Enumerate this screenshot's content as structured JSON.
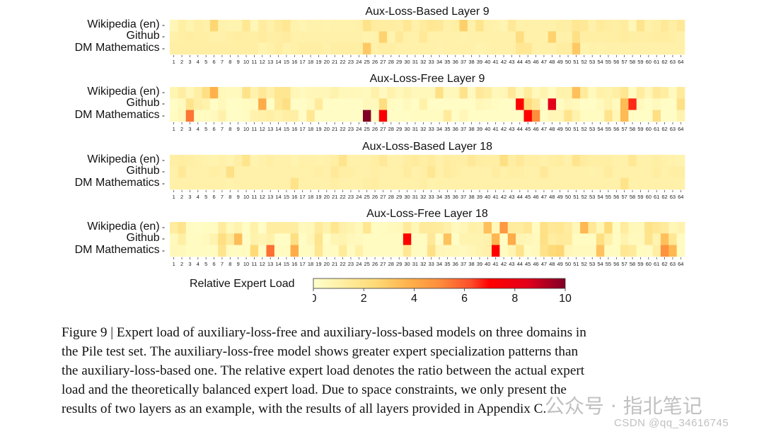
{
  "chart_data": [
    {
      "type": "heatmap",
      "title": "Aux-Loss-Based Layer 9",
      "rows": [
        "Wikipedia (en)",
        "Github",
        "DM Mathematics"
      ],
      "x": [
        1,
        2,
        3,
        4,
        5,
        6,
        7,
        8,
        9,
        10,
        11,
        12,
        13,
        14,
        15,
        16,
        17,
        18,
        19,
        20,
        21,
        22,
        23,
        24,
        25,
        26,
        27,
        28,
        29,
        30,
        31,
        32,
        33,
        34,
        35,
        36,
        37,
        38,
        39,
        40,
        41,
        42,
        43,
        44,
        45,
        46,
        47,
        48,
        49,
        50,
        51,
        52,
        53,
        54,
        55,
        56,
        57,
        58,
        59,
        60,
        61,
        62,
        63,
        64
      ],
      "values": [
        [
          0.6,
          1.1,
          0.8,
          1.1,
          1.0,
          2.6,
          0.9,
          0.8,
          0.8,
          1.6,
          0.6,
          1.3,
          1.0,
          1.4,
          1.6,
          0.9,
          0.7,
          0.9,
          0.9,
          0.8,
          0.9,
          0.9,
          0.9,
          1.0,
          1.9,
          1.3,
          1.2,
          1.2,
          1.1,
          1.6,
          1.0,
          1.3,
          1.6,
          1.5,
          1.0,
          1.1,
          2.8,
          1.0,
          1.8,
          1.0,
          0.9,
          0.7,
          1.5,
          1.0,
          1.0,
          1.0,
          1.0,
          1.0,
          1.1,
          1.1,
          1.6,
          1.5,
          1.0,
          1.4,
          1.2,
          1.1,
          1.3,
          0.6,
          1.8,
          1.0,
          1.1,
          1.5,
          1.1,
          1.5
        ],
        [
          1.0,
          1.1,
          1.2,
          1.1,
          1.1,
          1.0,
          1.0,
          1.1,
          1.2,
          1.1,
          1.1,
          1.3,
          1.1,
          1.1,
          1.3,
          1.0,
          1.0,
          1.0,
          1.0,
          1.0,
          1.0,
          1.0,
          1.0,
          1.0,
          0.8,
          0.9,
          2.7,
          0.8,
          1.5,
          1.0,
          1.0,
          1.5,
          1.0,
          1.0,
          1.0,
          1.0,
          0.9,
          1.0,
          1.0,
          1.0,
          1.0,
          1.0,
          1.0,
          2.2,
          1.0,
          1.0,
          1.0,
          2.7,
          1.0,
          1.0,
          2.0,
          1.1,
          1.1,
          1.1,
          1.1,
          1.1,
          1.3,
          1.1,
          1.1,
          1.1,
          1.2,
          1.2,
          1.1,
          1.0
        ],
        [
          1.1,
          1.1,
          1.1,
          1.1,
          1.1,
          1.1,
          1.1,
          1.1,
          1.1,
          1.1,
          1.1,
          0.8,
          1.0,
          1.2,
          0.9,
          1.0,
          1.1,
          1.1,
          1.1,
          1.0,
          1.1,
          1.1,
          1.1,
          1.1,
          3.0,
          1.0,
          1.1,
          1.1,
          1.0,
          1.0,
          1.0,
          1.0,
          1.0,
          0.9,
          1.0,
          1.0,
          1.0,
          1.0,
          0.8,
          0.9,
          1.0,
          1.0,
          1.0,
          1.6,
          1.6,
          1.0,
          1.0,
          1.0,
          1.2,
          1.2,
          3.0,
          0.8,
          1.0,
          0.9,
          1.0,
          1.0,
          1.0,
          1.0,
          1.0,
          1.0,
          1.0,
          1.0,
          1.0,
          1.0
        ]
      ]
    },
    {
      "type": "heatmap",
      "title": "Aux-Loss-Free Layer 9",
      "rows": [
        "Wikipedia (en)",
        "Github",
        "DM Mathematics"
      ],
      "x": [
        1,
        2,
        3,
        4,
        5,
        6,
        7,
        8,
        9,
        10,
        11,
        12,
        13,
        14,
        15,
        16,
        17,
        18,
        19,
        20,
        21,
        22,
        23,
        24,
        25,
        26,
        27,
        28,
        29,
        30,
        31,
        32,
        33,
        34,
        35,
        36,
        37,
        38,
        39,
        40,
        41,
        42,
        43,
        44,
        45,
        46,
        47,
        48,
        49,
        50,
        51,
        52,
        53,
        54,
        55,
        56,
        57,
        58,
        59,
        60,
        61,
        62,
        63,
        64
      ],
      "values": [
        [
          0.7,
          1.2,
          0.6,
          1.1,
          2.1,
          3.8,
          0.5,
          0.4,
          0.4,
          1.9,
          0.9,
          1.5,
          1.0,
          1.7,
          1.7,
          0.6,
          0.4,
          0.6,
          0.6,
          0.6,
          0.9,
          0.5,
          0.5,
          0.5,
          0.4,
          1.0,
          0.4,
          0.9,
          0.5,
          0.8,
          0.5,
          0.5,
          0.5,
          2.0,
          0.5,
          0.5,
          1.9,
          0.4,
          1.5,
          1.2,
          0.5,
          0.6,
          1.5,
          0.5,
          1.3,
          0.5,
          0.8,
          0.3,
          0.9,
          0.9,
          3.3,
          1.4,
          0.4,
          1.0,
          0.9,
          1.1,
          1.7,
          0.3,
          1.3,
          0.6,
          1.5,
          1.2,
          0.4,
          1.4
        ],
        [
          0.2,
          0.4,
          1.8,
          1.1,
          0.9,
          0.2,
          0.5,
          0.2,
          0.2,
          0.3,
          0.4,
          4.0,
          0.1,
          1.6,
          2.1,
          0.2,
          0.2,
          0.4,
          1.4,
          0.2,
          0.2,
          0.2,
          0.2,
          0.2,
          0.5,
          0.4,
          2.2,
          0.3,
          0.2,
          0.4,
          0.2,
          1.0,
          0.2,
          0.2,
          0.2,
          0.2,
          0.2,
          0.2,
          0.6,
          0.4,
          0.3,
          0.2,
          0.2,
          7.0,
          2.3,
          1.5,
          0.2,
          8.5,
          0.3,
          0.6,
          0.4,
          0.2,
          0.2,
          0.4,
          0.8,
          0.4,
          3.5,
          6.6,
          0.4,
          0.2,
          0.4,
          0.2,
          0.2,
          2.0
        ],
        [
          0.3,
          0.5,
          5.5,
          0.3,
          0.3,
          0.4,
          1.0,
          0.2,
          0.2,
          0.3,
          0.9,
          1.0,
          1.1,
          0.9,
          1.1,
          1.1,
          0.2,
          1.6,
          0.2,
          0.2,
          0.2,
          0.2,
          0.2,
          0.2,
          10.0,
          0.2,
          7.2,
          0.2,
          0.2,
          0.2,
          0.3,
          0.3,
          0.3,
          0.3,
          1.4,
          0.2,
          0.6,
          0.2,
          0.2,
          0.2,
          0.2,
          0.2,
          0.2,
          0.2,
          7.0,
          5.0,
          0.2,
          0.6,
          0.6,
          1.8,
          0.9,
          0.3,
          0.3,
          0.3,
          1.8,
          0.6,
          3.5,
          0.2,
          0.2,
          0.2,
          2.1,
          0.2,
          0.2,
          0.8
        ]
      ]
    },
    {
      "type": "heatmap",
      "title": "Aux-Loss-Based Layer 18",
      "rows": [
        "Wikipedia (en)",
        "Github",
        "DM Mathematics"
      ],
      "x": [
        1,
        2,
        3,
        4,
        5,
        6,
        7,
        8,
        9,
        10,
        11,
        12,
        13,
        14,
        15,
        16,
        17,
        18,
        19,
        20,
        21,
        22,
        23,
        24,
        25,
        26,
        27,
        28,
        29,
        30,
        31,
        32,
        33,
        34,
        35,
        36,
        37,
        38,
        39,
        40,
        41,
        42,
        43,
        44,
        45,
        46,
        47,
        48,
        49,
        50,
        51,
        52,
        53,
        54,
        55,
        56,
        57,
        58,
        59,
        60,
        61,
        62,
        63,
        64
      ],
      "values": [
        [
          1.1,
          1.2,
          1.1,
          1.0,
          0.9,
          0.8,
          1.0,
          0.8,
          1.1,
          1.8,
          0.8,
          1.0,
          1.1,
          1.0,
          1.0,
          0.8,
          1.0,
          1.0,
          0.9,
          1.0,
          1.1,
          1.8,
          1.0,
          1.0,
          1.0,
          1.1,
          1.5,
          1.0,
          1.0,
          1.2,
          1.4,
          1.1,
          1.3,
          1.0,
          1.2,
          1.1,
          1.1,
          1.5,
          1.2,
          1.1,
          1.1,
          2.1,
          1.2,
          1.5,
          1.1,
          1.1,
          1.0,
          1.1,
          1.2,
          1.0,
          1.8,
          1.3,
          1.1,
          1.1,
          1.1,
          1.0,
          1.0,
          1.6,
          1.0,
          1.0,
          1.1,
          1.0,
          0.9,
          0.8
        ],
        [
          1.0,
          1.5,
          1.0,
          1.0,
          1.0,
          1.1,
          1.0,
          2.0,
          1.0,
          1.0,
          1.0,
          1.0,
          1.0,
          1.0,
          1.0,
          1.0,
          1.0,
          1.0,
          1.1,
          1.0,
          1.5,
          1.1,
          1.1,
          1.0,
          1.0,
          1.1,
          1.0,
          1.0,
          1.0,
          1.3,
          1.0,
          1.1,
          1.7,
          1.0,
          1.3,
          1.1,
          1.0,
          1.0,
          1.0,
          1.0,
          1.2,
          1.0,
          1.1,
          1.1,
          1.0,
          1.0,
          1.5,
          1.0,
          1.0,
          1.0,
          1.0,
          1.0,
          0.9,
          1.0,
          1.3,
          1.0,
          1.0,
          1.0,
          1.0,
          1.0,
          1.2,
          1.0,
          1.1,
          1.1
        ],
        [
          1.0,
          1.0,
          1.0,
          1.0,
          1.0,
          1.0,
          1.0,
          0.9,
          1.0,
          1.0,
          1.0,
          1.0,
          1.0,
          1.0,
          1.0,
          1.9,
          1.0,
          1.0,
          1.0,
          1.0,
          1.1,
          1.0,
          1.0,
          1.0,
          1.1,
          1.2,
          1.0,
          1.0,
          1.0,
          1.0,
          1.0,
          1.1,
          0.9,
          1.0,
          1.0,
          1.0,
          1.0,
          1.0,
          1.0,
          1.0,
          1.0,
          1.0,
          1.0,
          1.0,
          1.0,
          1.0,
          1.0,
          1.0,
          1.0,
          1.0,
          1.0,
          1.0,
          1.0,
          1.0,
          1.0,
          1.0,
          1.9,
          1.0,
          1.0,
          1.0,
          1.0,
          1.0,
          1.0,
          1.0
        ]
      ]
    },
    {
      "type": "heatmap",
      "title": "Aux-Loss-Free Layer 18",
      "rows": [
        "Wikipedia (en)",
        "Github",
        "DM Mathematics"
      ],
      "x": [
        1,
        2,
        3,
        4,
        5,
        6,
        7,
        8,
        9,
        10,
        11,
        12,
        13,
        14,
        15,
        16,
        17,
        18,
        19,
        20,
        21,
        22,
        23,
        24,
        25,
        26,
        27,
        28,
        29,
        30,
        31,
        32,
        33,
        34,
        35,
        36,
        37,
        38,
        39,
        40,
        41,
        42,
        43,
        44,
        45,
        46,
        47,
        48,
        49,
        50,
        51,
        52,
        53,
        54,
        55,
        56,
        57,
        58,
        59,
        60,
        61,
        62,
        63,
        64
      ],
      "values": [
        [
          1.3,
          1.8,
          0.3,
          0.2,
          0.3,
          0.3,
          1.3,
          0.5,
          0.8,
          0.2,
          1.0,
          0.2,
          1.2,
          1.2,
          1.2,
          1.2,
          0.4,
          0.5,
          1.4,
          0.9,
          1.7,
          1.0,
          0.8,
          0.5,
          1.7,
          0.3,
          0.3,
          0.4,
          0.5,
          1.4,
          0.6,
          1.4,
          1.4,
          1.3,
          1.0,
          0.4,
          0.6,
          1.0,
          0.9,
          3.3,
          0.5,
          4.6,
          1.3,
          1.3,
          1.6,
          0.3,
          2.0,
          1.5,
          1.6,
          1.3,
          0.6,
          3.6,
          1.5,
          0.6,
          2.4,
          0.3,
          1.3,
          0.5,
          0.5,
          1.9,
          1.6,
          1.4,
          0.6,
          0.8
        ],
        [
          0.4,
          1.1,
          0.3,
          0.3,
          0.4,
          0.8,
          2.1,
          1.4,
          3.4,
          0.2,
          0.9,
          0.7,
          1.0,
          0.2,
          0.2,
          2.1,
          0.2,
          0.6,
          1.8,
          0.2,
          0.7,
          0.8,
          0.5,
          0.4,
          0.3,
          0.3,
          0.3,
          0.3,
          0.3,
          7.0,
          0.3,
          0.3,
          1.5,
          0.2,
          3.2,
          0.2,
          0.8,
          0.8,
          0.8,
          0.9,
          3.6,
          0.2,
          4.0,
          0.7,
          0.6,
          0.4,
          2.0,
          1.2,
          1.4,
          1.4,
          0.3,
          0.3,
          0.3,
          2.1,
          1.0,
          0.3,
          0.8,
          0.4,
          0.4,
          1.8,
          0.8,
          3.3,
          1.6,
          0.3
        ],
        [
          0.5,
          0.5,
          0.3,
          0.3,
          0.3,
          0.3,
          1.8,
          0.3,
          0.3,
          0.3,
          2.4,
          0.2,
          5.6,
          0.3,
          0.3,
          4.0,
          0.3,
          0.3,
          1.7,
          0.3,
          0.3,
          1.4,
          0.3,
          1.0,
          0.3,
          0.3,
          0.3,
          0.3,
          0.3,
          1.6,
          0.3,
          0.3,
          2.0,
          0.6,
          0.5,
          0.5,
          0.4,
          0.6,
          0.8,
          1.0,
          7.0,
          0.3,
          0.7,
          1.9,
          0.3,
          0.4,
          1.9,
          2.4,
          2.6,
          0.6,
          0.4,
          0.4,
          0.4,
          3.2,
          0.3,
          0.3,
          1.6,
          1.4,
          0.3,
          0.3,
          1.1,
          4.8,
          3.6,
          0.3
        ]
      ]
    }
  ],
  "colorbar": {
    "label": "Relative Expert Load",
    "ticks": [
      "0",
      "2",
      "4",
      "6",
      "8",
      "10"
    ],
    "min": 0,
    "max": 10,
    "colormap": "YlOrRd"
  },
  "caption": {
    "lines": [
      "Figure 9 | Expert load of auxiliary-loss-free and auxiliary-loss-based models on three domains in",
      "the Pile test set. The auxiliary-loss-free model shows greater expert specialization patterns than",
      "the auxiliary-loss-based one. The relative expert load denotes the ratio between the actual expert",
      "load and the theoretically balanced expert load. Due to space constraints, we only present the",
      "results of two layers as an example, with the results of all layers provided in Appendix C."
    ]
  },
  "watermarks": {
    "wechat": "公众号 · 指北笔记",
    "csdn": "CSDN @qq_34616745"
  }
}
